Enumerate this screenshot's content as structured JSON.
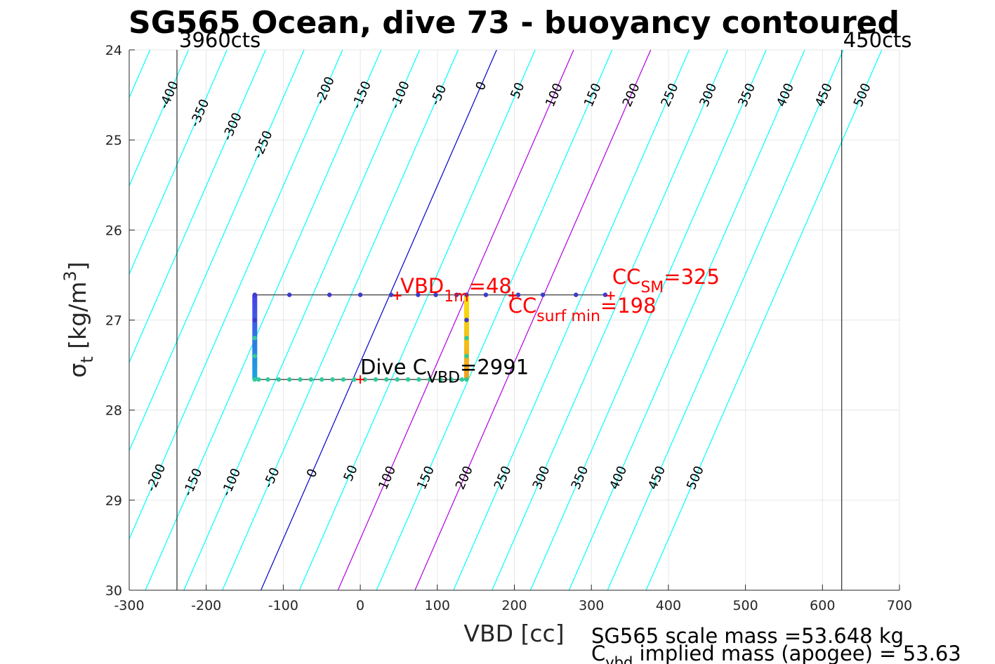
{
  "chart_data": {
    "type": "line",
    "title": "SG565 Ocean, dive 73 - buoyancy contoured",
    "xlabel": "VBD [cc]",
    "ylabel": {
      "base": "σ",
      "sub": "t",
      "main": " [kg/m",
      "sup": "3",
      "close": "]"
    },
    "xlim": [
      -300,
      700
    ],
    "ylim": [
      24,
      30
    ],
    "y_reversed": true,
    "grid": true,
    "xticks": [
      -300,
      -200,
      -100,
      0,
      100,
      200,
      300,
      400,
      500,
      600,
      700
    ],
    "yticks": [
      24,
      25,
      26,
      27,
      28,
      29,
      30
    ],
    "count_limits": [
      {
        "label": "3960cts",
        "vbd": -238
      },
      {
        "label": "450cts",
        "vbd": 625
      }
    ],
    "contours": {
      "levels": [
        -500,
        -450,
        -400,
        -350,
        -300,
        -250,
        -200,
        -150,
        -100,
        -50,
        0,
        50,
        100,
        150,
        200,
        250,
        300,
        350,
        400,
        450,
        500
      ],
      "vbd_at_sigma_24": 177,
      "vbd_change_per_unit_sigma": -51,
      "colors": {
        "default": "#00ffff",
        "zero": "#0000cc",
        "highlight": "#b000e0"
      },
      "highlight_levels": [
        100,
        200
      ],
      "top_labels": [
        "-400",
        "-350",
        "-300",
        "-250",
        "-200",
        "-150",
        "-100",
        "-50",
        "0",
        "50",
        "100",
        "150",
        "200",
        "250",
        "300",
        "350",
        "400",
        "450",
        "500"
      ],
      "top_label_levels": [
        -400,
        -350,
        -300,
        -250,
        -200,
        -150,
        -100,
        -50,
        0,
        50,
        100,
        150,
        200,
        250,
        300,
        350,
        400,
        450,
        500
      ],
      "top_label_sigma": [
        24.5,
        24.7,
        24.85,
        25.05,
        24.45,
        24.5,
        24.5,
        24.5,
        24.4,
        24.45,
        24.5,
        24.5,
        24.5,
        24.5,
        24.5,
        24.5,
        24.5,
        24.5,
        24.5
      ],
      "bottom_labels": [
        "-200",
        "-150",
        "-100",
        "-50",
        "0",
        "50",
        "100",
        "150",
        "200",
        "250",
        "300",
        "350",
        "400",
        "450",
        "500"
      ],
      "bottom_label_levels": [
        -200,
        -150,
        -100,
        -50,
        0,
        50,
        100,
        150,
        200,
        250,
        300,
        350,
        400,
        450,
        500
      ],
      "bottom_label_sigma": [
        28.75,
        28.8,
        28.8,
        28.75,
        28.7,
        28.7,
        28.75,
        28.75,
        28.75,
        28.75,
        28.75,
        28.75,
        28.75,
        28.75,
        28.75
      ]
    },
    "series": [
      {
        "points": [
          [
            318,
            26.72
          ],
          [
            280,
            26.72
          ],
          [
            237,
            26.72
          ],
          [
            205,
            26.72
          ],
          [
            163,
            26.72
          ],
          [
            125,
            26.72
          ],
          [
            98,
            26.72
          ],
          [
            75,
            26.72
          ],
          [
            40,
            26.72
          ],
          [
            0,
            26.72
          ],
          [
            -40,
            26.72
          ],
          [
            -92,
            26.72
          ],
          [
            -137,
            26.72
          ],
          [
            -137,
            27.0
          ],
          [
            -137,
            27.2
          ],
          [
            -137,
            27.4
          ],
          [
            -137,
            27.66
          ],
          [
            -132,
            27.66
          ],
          [
            -120,
            27.66
          ],
          [
            -106,
            27.66
          ],
          [
            -92,
            27.66
          ],
          [
            -78,
            27.66
          ],
          [
            -64,
            27.66
          ],
          [
            -50,
            27.66
          ],
          [
            -36,
            27.66
          ],
          [
            -22,
            27.66
          ],
          [
            -8,
            27.66
          ],
          [
            6,
            27.66
          ],
          [
            20,
            27.66
          ],
          [
            34,
            27.66
          ],
          [
            48,
            27.66
          ],
          [
            62,
            27.66
          ],
          [
            76,
            27.66
          ],
          [
            90,
            27.66
          ],
          [
            104,
            27.66
          ],
          [
            118,
            27.66
          ],
          [
            132,
            27.66
          ],
          [
            138,
            27.66
          ],
          [
            138,
            27.4
          ],
          [
            138,
            27.2
          ],
          [
            138,
            27.0
          ],
          [
            138,
            26.72
          ]
        ],
        "vertical_segments": [
          {
            "vbd": -137,
            "sigma_from": 26.72,
            "sigma_to": 27.66,
            "color_from": "#4a3ee6",
            "color_to": "#1aa6e0"
          },
          {
            "vbd": 138,
            "sigma_from": 27.66,
            "sigma_to": 26.72,
            "color_from": "#f0a020",
            "color_to": "#fae10a"
          }
        ],
        "point_colors": {
          "top": "#3c3ccc",
          "bottom": "#2ecc9c"
        },
        "line_color": "#555555"
      }
    ],
    "markers": [
      {
        "vbd": 48,
        "sigma": 26.73,
        "color": "#ff0000"
      },
      {
        "vbd": 325,
        "sigma": 26.73,
        "color": "#ff0000"
      },
      {
        "vbd": 198,
        "sigma": 26.73,
        "color": "#ff0000"
      },
      {
        "vbd": 0,
        "sigma": 27.66,
        "color": "#ff0000"
      }
    ],
    "annotations": [
      {
        "base": "VBD",
        "sub": "1m",
        "rest": "=48",
        "color": "#ff0000",
        "vbd": 52,
        "sigma": 26.7
      },
      {
        "base": "CC",
        "sub": "SM",
        "rest": "=325",
        "color": "#ff0000",
        "vbd": 327,
        "sigma": 26.6
      },
      {
        "base": "CC",
        "sub": "surf min",
        "rest": "=198",
        "color": "#ff0000",
        "vbd": 192,
        "sigma": 26.92
      },
      {
        "base": "Dive C",
        "sub": "VBD",
        "rest": "=2991",
        "color": "#000000",
        "vbd": 0,
        "sigma": 27.6
      }
    ]
  },
  "mass_text": {
    "line1": "SG565 scale mass =53.648 kg",
    "line2_base": "C",
    "line2_sub": "vbd",
    "line2_rest": " implied mass (apogee) = 53.63"
  }
}
